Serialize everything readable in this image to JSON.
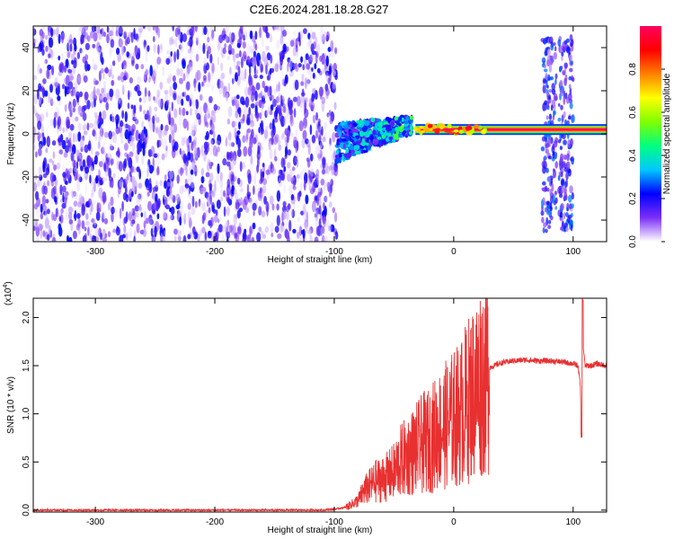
{
  "title": "C2E6.2024.281.18.28.G27",
  "chart_data": [
    {
      "type": "heatmap",
      "xlabel": "Height of straight line (km)",
      "ylabel": "Frequency (Hz)",
      "xlim": [
        -352,
        128
      ],
      "ylim": [
        -50,
        50
      ],
      "xticks": [
        -300,
        -200,
        -100,
        0,
        100
      ],
      "yticks": [
        -40,
        -20,
        0,
        20,
        40
      ],
      "colorbar": {
        "label": "Normalized spectral amplitude",
        "range": [
          0,
          1
        ],
        "ticks": [
          0.0,
          0.2,
          0.4,
          0.6,
          0.8
        ],
        "colormap": [
          "#ffffff",
          "#7b2ff7",
          "#0000ff",
          "#00c8ff",
          "#00ff80",
          "#80ff00",
          "#ffff00",
          "#ff8000",
          "#ff0000",
          "#ff0060"
        ]
      },
      "regions": [
        {
          "x_range": [
            -352,
            -98
          ],
          "freq_range": [
            -50,
            50
          ],
          "amplitude_range": [
            0.0,
            0.25
          ],
          "description": "noise"
        },
        {
          "x_range": [
            -98,
            -35
          ],
          "freq_center_from": -4,
          "freq_center_to": 4,
          "amplitude_range": [
            0.1,
            0.55
          ]
        },
        {
          "x_range": [
            -35,
            128
          ],
          "freq_center": 2,
          "amplitude_range": [
            0.6,
            1.0
          ]
        },
        {
          "x_range": [
            75,
            105
          ],
          "freq_range": [
            -45,
            45
          ],
          "amplitude_range": [
            0.05,
            0.3
          ]
        }
      ]
    },
    {
      "type": "line",
      "xlabel": "Height of straight line (km)",
      "ylabel": "SNR (10 * v/v)",
      "scale_label": "(x10",
      "scale_exp": "4",
      "scale_close": ")",
      "xlim": [
        -352,
        128
      ],
      "ylim": [
        -0.02,
        2.2
      ],
      "xticks": [
        -300,
        -200,
        -100,
        0,
        100
      ],
      "yticks": [
        0.0,
        0.5,
        1.0,
        1.5,
        2.0
      ],
      "color": "#e83030",
      "series": [
        {
          "x": [
            -352,
            -300,
            -250,
            -200,
            -150,
            -110,
            -100,
            -90,
            -80,
            -75,
            -70,
            -65,
            -60,
            -55,
            -50,
            -45,
            -40,
            -35,
            -30,
            -25,
            -20,
            -15,
            -10,
            -5,
            0,
            5,
            10,
            15,
            20,
            25,
            30,
            40,
            50,
            60,
            70,
            80,
            90,
            100,
            104,
            106,
            107,
            108,
            110,
            115,
            120,
            128
          ],
          "y": [
            0.0,
            0.0,
            0.0,
            0.0,
            0.0,
            0.0,
            0.01,
            0.03,
            0.1,
            0.2,
            0.25,
            0.3,
            0.32,
            0.35,
            0.4,
            0.5,
            0.55,
            0.6,
            0.65,
            0.7,
            0.72,
            0.8,
            0.85,
            0.9,
            0.95,
            1.0,
            1.1,
            1.2,
            1.3,
            1.4,
            1.48,
            1.53,
            1.55,
            1.56,
            1.55,
            1.55,
            1.54,
            1.52,
            1.5,
            1.3,
            0.78,
            1.75,
            1.5,
            1.5,
            1.52,
            1.5
          ]
        }
      ]
    }
  ]
}
